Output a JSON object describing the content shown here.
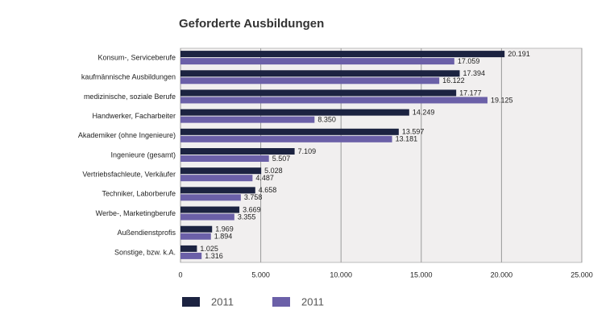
{
  "chart_data": {
    "type": "hbar",
    "title": "Geforderte Ausbildungen",
    "categories": [
      "Konsum-, Serviceberufe",
      "kaufmännische Ausbildungen",
      "medizinische, soziale Berufe",
      "Handwerker, Facharbeiter",
      "Akademiker (ohne Ingenieure)",
      "Ingenieure (gesamt)",
      "Vertriebsfachleute, Verkäufer",
      "Techniker, Laborberufe",
      "Werbe-, Marketingberufe",
      "Außendienstprofis",
      "Sonstige, bzw. k.A."
    ],
    "series": [
      {
        "name": "2011",
        "color": "#1c2341",
        "values": [
          20191,
          17394,
          17177,
          14249,
          13597,
          7109,
          5028,
          4658,
          3669,
          1969,
          1025
        ],
        "value_labels": [
          "20.191",
          "17.394",
          "17.177",
          "14.249",
          "13.597",
          "7.109",
          "5.028",
          "4.658",
          "3.669",
          "1.969",
          "1.025"
        ]
      },
      {
        "name": "2011",
        "color": "#6b60a8",
        "values": [
          17059,
          16122,
          19125,
          8350,
          13181,
          5507,
          4487,
          3758,
          3355,
          1894,
          1316
        ],
        "value_labels": [
          "17.059",
          "16.122",
          "19.125",
          "8.350",
          "13.181",
          "5.507",
          "4.487",
          "3.758",
          "3.355",
          "1.894",
          "1.316"
        ]
      }
    ],
    "xlim": [
      0,
      25000
    ],
    "xticks": [
      0,
      {
        "value": 5000,
        "label": "5.000"
      },
      {
        "value": 10000,
        "label": "10.000"
      },
      {
        "value": 15000,
        "label": "15.000"
      },
      {
        "value": 20000,
        "label": "20.000"
      },
      {
        "value": 25000,
        "label": "25.000"
      }
    ],
    "grid": true
  }
}
